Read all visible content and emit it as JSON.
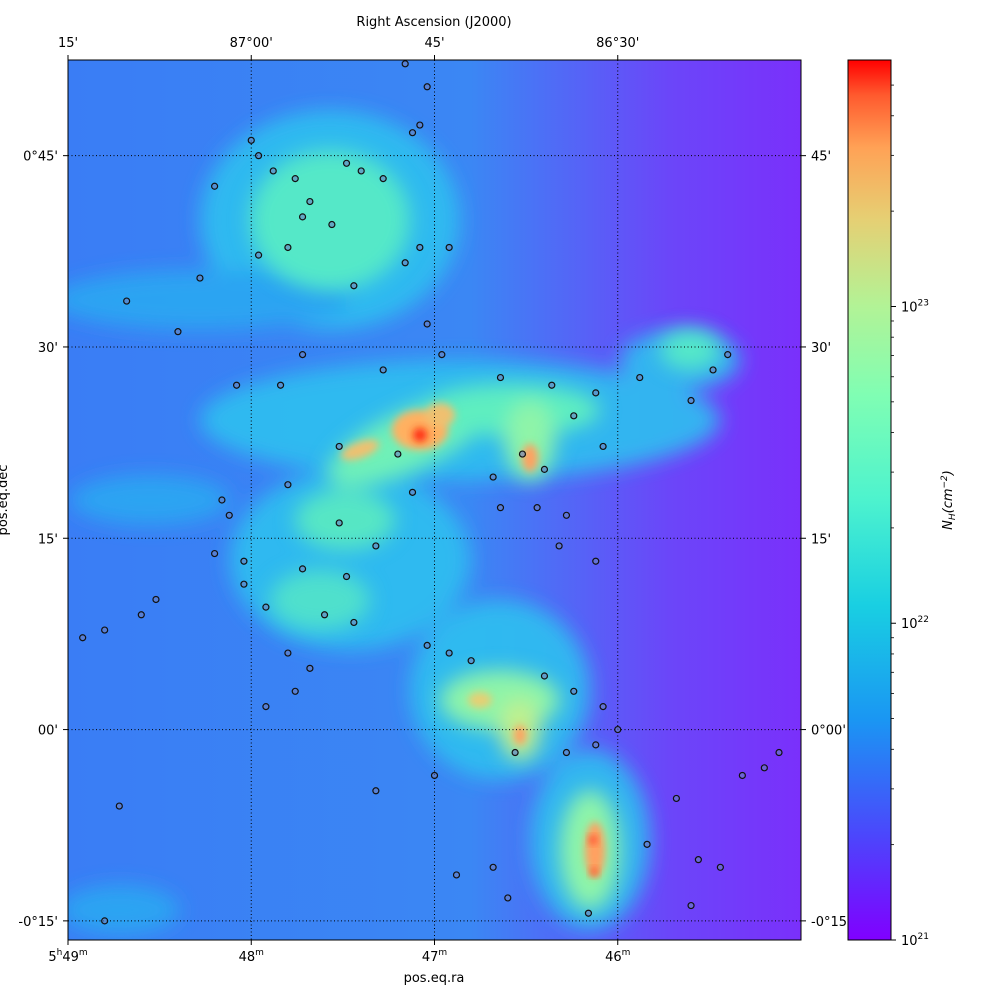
{
  "chart_data": {
    "type": "heatmap",
    "title": "",
    "top_axis_label": "Right Ascension (J2000)",
    "xlabel": "pos.eq.ra",
    "ylabel": "pos.eq.dec",
    "top_ticks": [
      {
        "label": "15'",
        "ra_deg": 87.25
      },
      {
        "label": "87°00'",
        "ra_deg": 87.0
      },
      {
        "label": "45'",
        "ra_deg": 86.75
      },
      {
        "label": "86°30'",
        "ra_deg": 86.5
      }
    ],
    "bottom_ticks": [
      {
        "label": "5h49m",
        "main": "5",
        "h": "h",
        "mid": "49",
        "m": "m",
        "ra_deg": 87.25
      },
      {
        "label": "48m",
        "main": "48",
        "m": "m",
        "ra_deg": 87.0
      },
      {
        "label": "47m",
        "main": "47",
        "m": "m",
        "ra_deg": 86.75
      },
      {
        "label": "46m",
        "main": "46",
        "m": "m",
        "ra_deg": 86.5
      }
    ],
    "left_ticks": [
      {
        "label": "0°45'",
        "dec_deg": 0.75
      },
      {
        "label": "30'",
        "dec_deg": 0.5
      },
      {
        "label": "15'",
        "dec_deg": 0.25
      },
      {
        "label": "00'",
        "dec_deg": 0.0
      },
      {
        "label": "-0°15'",
        "dec_deg": -0.25
      }
    ],
    "right_ticks": [
      {
        "label": "45'",
        "dec_deg": 0.75
      },
      {
        "label": "30'",
        "dec_deg": 0.5
      },
      {
        "label": "15'",
        "dec_deg": 0.25
      },
      {
        "label": "0°00'",
        "dec_deg": 0.0
      },
      {
        "label": "-0°15'",
        "dec_deg": -0.25
      }
    ],
    "ra_range": [
      87.25,
      86.25
    ],
    "dec_range": [
      -0.275,
      0.875
    ],
    "grid": true,
    "colormap": "rainbow",
    "colorbar": {
      "label": "N_H(cm^-2)",
      "label_main": "N",
      "label_sub": "H",
      "label_unit": "(cm",
      "label_exp": "−2",
      "label_close": ")",
      "scale": "log",
      "range": [
        1e+21,
        6e+23
      ],
      "ticks": [
        {
          "base": "10",
          "exp": "21",
          "value": 1e+21
        },
        {
          "base": "10",
          "exp": "22",
          "value": 1e+22
        },
        {
          "base": "10",
          "exp": "23",
          "value": 1e+23
        }
      ]
    },
    "colors": {
      "background": "#6a3cf5",
      "low": "#8000ff",
      "mid_low": "#1996f3",
      "mid": "#4df3ce",
      "mid_high": "#b2f396",
      "high": "#ffb360",
      "peak": "#ff0000"
    },
    "filaments": [
      {
        "ra": 86.85,
        "dec": 0.38,
        "ra_w": 0.1,
        "dec_w": 0.06,
        "nh": 8e+21
      },
      {
        "ra": 86.8,
        "dec": 0.22,
        "ra_w": 0.12,
        "dec_w": 0.04,
        "nh": 2e+22
      },
      {
        "ra": 86.9,
        "dec": 0.72,
        "ra_w": 0.05,
        "dec_w": 0.1,
        "nh": 1e+22
      },
      {
        "ra": 86.6,
        "dec": 0.24,
        "ra_w": 0.1,
        "dec_w": 0.05,
        "nh": 3e+22
      },
      {
        "ra": 86.7,
        "dec": 0.02,
        "ra_w": 0.07,
        "dec_w": 0.05,
        "nh": 4e+22
      },
      {
        "ra": 86.54,
        "dec": -0.17,
        "ra_w": 0.06,
        "dec_w": 0.08,
        "nh": 5e+22
      },
      {
        "ra": 86.76,
        "dec": 0.24,
        "ra_w": 0.05,
        "dec_w": 0.04,
        "nh": 3e+23
      }
    ],
    "sources": [
      {
        "ra": 86.79,
        "dec": 0.87
      },
      {
        "ra": 86.76,
        "dec": 0.84
      },
      {
        "ra": 86.77,
        "dec": 0.79
      },
      {
        "ra": 86.78,
        "dec": 0.78
      },
      {
        "ra": 87.0,
        "dec": 0.77
      },
      {
        "ra": 86.99,
        "dec": 0.75
      },
      {
        "ra": 86.97,
        "dec": 0.73
      },
      {
        "ra": 86.94,
        "dec": 0.72
      },
      {
        "ra": 86.87,
        "dec": 0.74
      },
      {
        "ra": 86.85,
        "dec": 0.73
      },
      {
        "ra": 86.82,
        "dec": 0.72
      },
      {
        "ra": 86.92,
        "dec": 0.69
      },
      {
        "ra": 86.93,
        "dec": 0.67
      },
      {
        "ra": 86.89,
        "dec": 0.66
      },
      {
        "ra": 87.05,
        "dec": 0.71
      },
      {
        "ra": 86.99,
        "dec": 0.62
      },
      {
        "ra": 86.95,
        "dec": 0.63
      },
      {
        "ra": 86.77,
        "dec": 0.63
      },
      {
        "ra": 86.73,
        "dec": 0.63
      },
      {
        "ra": 86.79,
        "dec": 0.61
      },
      {
        "ra": 87.07,
        "dec": 0.59
      },
      {
        "ra": 86.86,
        "dec": 0.58
      },
      {
        "ra": 87.17,
        "dec": 0.56
      },
      {
        "ra": 87.1,
        "dec": 0.52
      },
      {
        "ra": 86.93,
        "dec": 0.49
      },
      {
        "ra": 86.74,
        "dec": 0.49
      },
      {
        "ra": 86.76,
        "dec": 0.53
      },
      {
        "ra": 86.47,
        "dec": 0.46
      },
      {
        "ra": 86.37,
        "dec": 0.47
      },
      {
        "ra": 86.35,
        "dec": 0.49
      },
      {
        "ra": 87.02,
        "dec": 0.45
      },
      {
        "ra": 86.96,
        "dec": 0.45
      },
      {
        "ra": 86.82,
        "dec": 0.47
      },
      {
        "ra": 86.66,
        "dec": 0.46
      },
      {
        "ra": 86.59,
        "dec": 0.45
      },
      {
        "ra": 86.53,
        "dec": 0.44
      },
      {
        "ra": 86.56,
        "dec": 0.41
      },
      {
        "ra": 86.4,
        "dec": 0.43
      },
      {
        "ra": 86.52,
        "dec": 0.37
      },
      {
        "ra": 86.6,
        "dec": 0.34
      },
      {
        "ra": 86.63,
        "dec": 0.36
      },
      {
        "ra": 86.67,
        "dec": 0.33
      },
      {
        "ra": 86.78,
        "dec": 0.31
      },
      {
        "ra": 86.8,
        "dec": 0.36
      },
      {
        "ra": 86.66,
        "dec": 0.29
      },
      {
        "ra": 86.61,
        "dec": 0.29
      },
      {
        "ra": 86.57,
        "dec": 0.28
      },
      {
        "ra": 86.58,
        "dec": 0.24
      },
      {
        "ra": 86.53,
        "dec": 0.22
      },
      {
        "ra": 86.88,
        "dec": 0.37
      },
      {
        "ra": 86.95,
        "dec": 0.32
      },
      {
        "ra": 86.88,
        "dec": 0.27
      },
      {
        "ra": 86.83,
        "dec": 0.24
      },
      {
        "ra": 86.87,
        "dec": 0.2
      },
      {
        "ra": 86.93,
        "dec": 0.21
      },
      {
        "ra": 87.01,
        "dec": 0.22
      },
      {
        "ra": 87.03,
        "dec": 0.28
      },
      {
        "ra": 87.04,
        "dec": 0.3
      },
      {
        "ra": 87.01,
        "dec": 0.19
      },
      {
        "ra": 86.98,
        "dec": 0.16
      },
      {
        "ra": 86.9,
        "dec": 0.15
      },
      {
        "ra": 86.86,
        "dec": 0.14
      },
      {
        "ra": 86.95,
        "dec": 0.1
      },
      {
        "ra": 86.92,
        "dec": 0.08
      },
      {
        "ra": 86.94,
        "dec": 0.05
      },
      {
        "ra": 86.98,
        "dec": 0.03
      },
      {
        "ra": 87.05,
        "dec": 0.23
      },
      {
        "ra": 87.13,
        "dec": 0.17
      },
      {
        "ra": 87.15,
        "dec": 0.15
      },
      {
        "ra": 87.2,
        "dec": 0.13
      },
      {
        "ra": 87.23,
        "dec": 0.12
      },
      {
        "ra": 86.76,
        "dec": 0.11
      },
      {
        "ra": 86.73,
        "dec": 0.1
      },
      {
        "ra": 86.7,
        "dec": 0.09
      },
      {
        "ra": 86.6,
        "dec": 0.07
      },
      {
        "ra": 86.56,
        "dec": 0.05
      },
      {
        "ra": 86.52,
        "dec": 0.03
      },
      {
        "ra": 86.5,
        "dec": 0.0
      },
      {
        "ra": 86.53,
        "dec": -0.02
      },
      {
        "ra": 86.57,
        "dec": -0.03
      },
      {
        "ra": 86.64,
        "dec": -0.03
      },
      {
        "ra": 86.75,
        "dec": -0.06
      },
      {
        "ra": 86.83,
        "dec": -0.08
      },
      {
        "ra": 86.42,
        "dec": -0.09
      },
      {
        "ra": 86.46,
        "dec": -0.15
      },
      {
        "ra": 86.39,
        "dec": -0.17
      },
      {
        "ra": 86.36,
        "dec": -0.18
      },
      {
        "ra": 86.4,
        "dec": -0.23
      },
      {
        "ra": 86.54,
        "dec": -0.24
      },
      {
        "ra": 86.33,
        "dec": -0.06
      },
      {
        "ra": 86.3,
        "dec": -0.05
      },
      {
        "ra": 86.28,
        "dec": -0.03
      },
      {
        "ra": 87.18,
        "dec": -0.1
      },
      {
        "ra": 87.2,
        "dec": -0.25
      },
      {
        "ra": 86.67,
        "dec": -0.18
      },
      {
        "ra": 86.65,
        "dec": -0.22
      },
      {
        "ra": 86.72,
        "dec": -0.19
      }
    ]
  }
}
